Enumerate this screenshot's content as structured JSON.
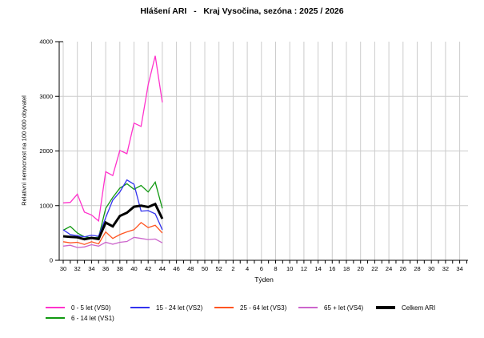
{
  "chart_data": {
    "type": "line",
    "title": "Hlášení ARI   -   Kraj Vysočina, sezóna : 2025 / 2026",
    "xlabel": "Týden",
    "ylabel": "Relativní nemocnost na 100 000 obyvatel",
    "grid": true,
    "legend_position": "bottom",
    "y_axis": {
      "min": 0,
      "max": 4000,
      "ticks": [
        0,
        1000,
        2000,
        3000,
        4000
      ]
    },
    "x_axis": {
      "weeks_span": 58,
      "tick_labels": [
        "30",
        "32",
        "34",
        "36",
        "38",
        "40",
        "42",
        "44",
        "46",
        "48",
        "50",
        "52",
        "2",
        "4",
        "6",
        "8",
        "10",
        "12",
        "14",
        "16",
        "18",
        "20",
        "22",
        "24",
        "26",
        "28",
        "30",
        "32",
        "34"
      ]
    },
    "data_weeks": [
      30,
      31,
      32,
      33,
      34,
      35,
      36,
      37,
      38,
      39,
      40,
      41,
      42,
      43,
      44
    ],
    "series": [
      {
        "id": "vs0",
        "name": "0 - 5 let (VS0)",
        "color": "#FF33CC",
        "thick": false,
        "legend_row": 0,
        "legend_col": 0,
        "values": [
          1050,
          1060,
          1210,
          880,
          830,
          720,
          1620,
          1550,
          2010,
          1950,
          2510,
          2450,
          3210,
          3740,
          2890
        ]
      },
      {
        "id": "vs1",
        "name": "6 - 14 let (VS1)",
        "color": "#119911",
        "thick": false,
        "legend_row": 1,
        "legend_col": 0,
        "values": [
          550,
          620,
          500,
          430,
          410,
          420,
          950,
          1150,
          1320,
          1400,
          1300,
          1370,
          1250,
          1430,
          950
        ]
      },
      {
        "id": "vs2",
        "name": "15 - 24 let (VS2)",
        "color": "#3333EE",
        "thick": false,
        "legend_row": 0,
        "legend_col": 1,
        "values": [
          560,
          470,
          450,
          430,
          460,
          440,
          780,
          1100,
          1250,
          1470,
          1390,
          900,
          910,
          850,
          560
        ]
      },
      {
        "id": "vs3",
        "name": "25 - 64 let (VS3)",
        "color": "#FF5522",
        "thick": false,
        "legend_row": 0,
        "legend_col": 2,
        "values": [
          340,
          320,
          330,
          290,
          340,
          300,
          520,
          400,
          470,
          520,
          560,
          690,
          600,
          640,
          500
        ]
      },
      {
        "id": "vs4",
        "name": "65 + let (VS4)",
        "color": "#CC66CC",
        "thick": false,
        "legend_row": 0,
        "legend_col": 3,
        "values": [
          260,
          275,
          235,
          245,
          285,
          260,
          330,
          295,
          330,
          345,
          420,
          400,
          380,
          390,
          320
        ]
      },
      {
        "id": "celkem",
        "name": "Celkem ARI",
        "color": "#000000",
        "thick": true,
        "legend_row": 0,
        "legend_col": 4,
        "values": [
          440,
          430,
          420,
          385,
          410,
          390,
          690,
          620,
          810,
          870,
          980,
          1000,
          975,
          1030,
          760
        ]
      }
    ],
    "colors": {
      "gridline": "#CCCCCC",
      "axis": "#000000",
      "background": "#FFFFFF"
    }
  }
}
